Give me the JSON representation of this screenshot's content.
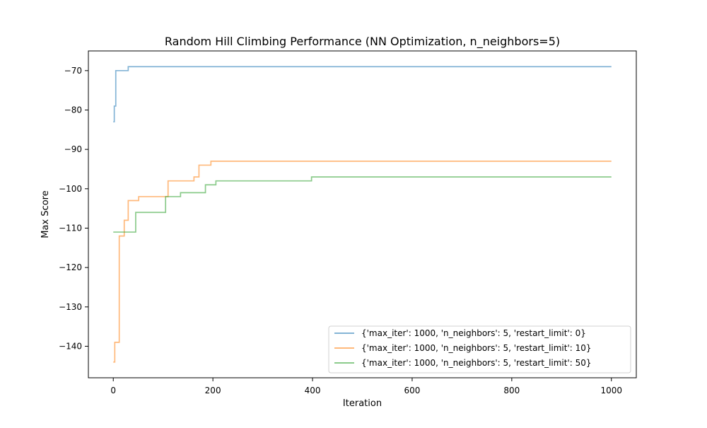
{
  "chart_data": {
    "type": "line",
    "title": "Random Hill Climbing Performance (NN Optimization, n_neighbors=5)",
    "xlabel": "Iteration",
    "ylabel": "Max Score",
    "xlim": [
      -50,
      1050
    ],
    "ylim": [
      -148,
      -65
    ],
    "xticks": [
      0,
      200,
      400,
      600,
      800,
      1000
    ],
    "yticks": [
      -70,
      -80,
      -90,
      -100,
      -110,
      -120,
      -130,
      -140
    ],
    "xtick_labels": [
      "0",
      "200",
      "400",
      "600",
      "800",
      "1000"
    ],
    "ytick_labels": [
      "−70",
      "−80",
      "−90",
      "−100",
      "−110",
      "−120",
      "−130",
      "−140"
    ],
    "grid": false,
    "legend_position": "lower-right",
    "series": [
      {
        "name": "{'max_iter': 1000, 'n_neighbors': 5, 'restart_limit': 0}",
        "color": "#1f77b4",
        "step_points": [
          [
            0,
            -83
          ],
          [
            2,
            -79
          ],
          [
            5,
            -70
          ],
          [
            30,
            -69
          ],
          [
            1000,
            -69
          ]
        ]
      },
      {
        "name": "{'max_iter': 1000, 'n_neighbors': 5, 'restart_limit': 10}",
        "color": "#ff7f0e",
        "step_points": [
          [
            0,
            -144
          ],
          [
            3,
            -139
          ],
          [
            12,
            -112
          ],
          [
            22,
            -108
          ],
          [
            30,
            -103
          ],
          [
            51,
            -102
          ],
          [
            110,
            -98
          ],
          [
            162,
            -97
          ],
          [
            172,
            -94
          ],
          [
            196,
            -93
          ],
          [
            1000,
            -93
          ]
        ]
      },
      {
        "name": "{'max_iter': 1000, 'n_neighbors': 5, 'restart_limit': 50}",
        "color": "#2ca02c",
        "step_points": [
          [
            0,
            -111
          ],
          [
            45,
            -106
          ],
          [
            105,
            -102
          ],
          [
            135,
            -101
          ],
          [
            185,
            -99
          ],
          [
            206,
            -98
          ],
          [
            398,
            -97
          ],
          [
            1000,
            -97
          ]
        ]
      }
    ]
  }
}
